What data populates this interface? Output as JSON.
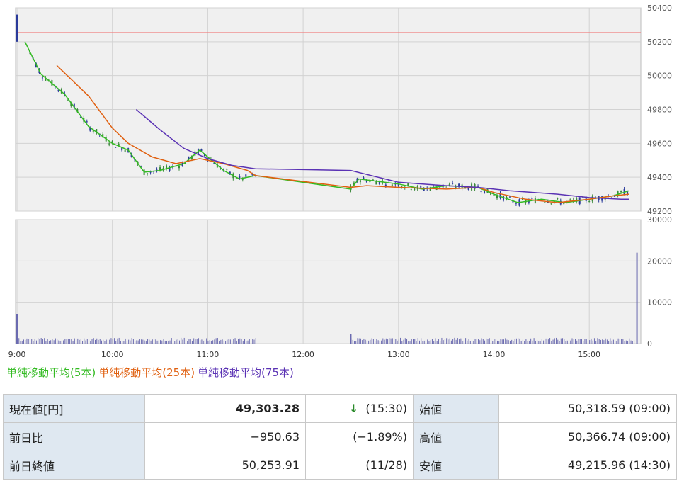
{
  "chart_data": [
    {
      "type": "candlestick",
      "x_ticks": [
        "9:00",
        "10:00",
        "11:00",
        "12:00",
        "13:00",
        "14:00",
        "15:00"
      ],
      "y_ticks": [
        "50400",
        "50200",
        "50000",
        "49800",
        "49600",
        "49400",
        "49200"
      ],
      "ylim": [
        49200,
        50400
      ],
      "grid": true,
      "reference_line": 50253.91,
      "session_breaks": [
        "11:30",
        "12:30"
      ],
      "series": [
        {
          "name": "単純移動平均(5本)",
          "color": "#33bb22",
          "points": [
            [
              "9:05",
              50200
            ],
            [
              "9:15",
              50010
            ],
            [
              "9:30",
              49890
            ],
            [
              "9:45",
              49700
            ],
            [
              "10:00",
              49600
            ],
            [
              "10:10",
              49560
            ],
            [
              "10:20",
              49430
            ],
            [
              "10:30",
              49440
            ],
            [
              "10:45",
              49480
            ],
            [
              "10:55",
              49560
            ],
            [
              "11:00",
              49520
            ],
            [
              "11:10",
              49440
            ],
            [
              "11:20",
              49390
            ],
            [
              "11:30",
              49410
            ],
            [
              "12:30",
              49330
            ],
            [
              "12:35",
              49390
            ],
            [
              "13:00",
              49360
            ],
            [
              "13:15",
              49330
            ],
            [
              "13:30",
              49350
            ],
            [
              "13:50",
              49340
            ],
            [
              "14:00",
              49300
            ],
            [
              "14:15",
              49250
            ],
            [
              "14:30",
              49270
            ],
            [
              "14:45",
              49250
            ],
            [
              "15:00",
              49270
            ],
            [
              "15:15",
              49290
            ],
            [
              "15:25",
              49320
            ]
          ]
        },
        {
          "name": "単純移動平均(25本)",
          "color": "#e06010",
          "points": [
            [
              "9:25",
              50060
            ],
            [
              "9:45",
              49880
            ],
            [
              "10:00",
              49690
            ],
            [
              "10:10",
              49600
            ],
            [
              "10:25",
              49520
            ],
            [
              "10:40",
              49480
            ],
            [
              "10:55",
              49510
            ],
            [
              "11:10",
              49480
            ],
            [
              "11:25",
              49440
            ],
            [
              "11:30",
              49410
            ],
            [
              "12:30",
              49340
            ],
            [
              "12:40",
              49350
            ],
            [
              "13:00",
              49340
            ],
            [
              "13:30",
              49330
            ],
            [
              "13:50",
              49340
            ],
            [
              "14:00",
              49310
            ],
            [
              "14:20",
              49270
            ],
            [
              "14:40",
              49250
            ],
            [
              "15:00",
              49270
            ],
            [
              "15:15",
              49290
            ],
            [
              "15:25",
              49300
            ]
          ]
        },
        {
          "name": "単純移動平均(75本)",
          "color": "#5a32b4",
          "points": [
            [
              "10:15",
              49800
            ],
            [
              "10:30",
              49680
            ],
            [
              "10:45",
              49570
            ],
            [
              "11:00",
              49510
            ],
            [
              "11:15",
              49470
            ],
            [
              "11:30",
              49450
            ],
            [
              "12:30",
              49440
            ],
            [
              "13:00",
              49370
            ],
            [
              "13:30",
              49350
            ],
            [
              "13:50",
              49340
            ],
            [
              "14:10",
              49320
            ],
            [
              "14:40",
              49300
            ],
            [
              "15:00",
              49280
            ],
            [
              "15:20",
              49270
            ],
            [
              "15:25",
              49270
            ]
          ]
        }
      ]
    },
    {
      "type": "bar",
      "x_ticks": [
        "9:00",
        "10:00",
        "11:00",
        "12:00",
        "13:00",
        "14:00",
        "15:00"
      ],
      "y_ticks": [
        "30000",
        "20000",
        "10000",
        "0"
      ],
      "ylim": [
        0,
        30000
      ],
      "grid": true,
      "spikes": [
        [
          "9:00",
          7200
        ],
        [
          "12:30",
          2300
        ],
        [
          "15:30",
          22000
        ]
      ],
      "baseline_volume": 1000
    }
  ],
  "legend": {
    "ma5": "単純移動平均(5本)",
    "ma25": "単純移動平均(25本)",
    "ma75": "単純移動平均(75本)"
  },
  "colors": {
    "ma5": "#33bb22",
    "ma25": "#e06010",
    "ma75": "#5a32b4",
    "reference": "#f08080",
    "volume": "#6a6ab0",
    "up_candle": "#3a8a3a",
    "down_candle": "#2a3a9a"
  },
  "table": {
    "current_label": "現在値[円]",
    "current_value": "49,303.28",
    "arrow": "↓",
    "current_time": "(15:30)",
    "open_label": "始値",
    "open_value": "50,318.59 (09:00)",
    "change_label": "前日比",
    "change_value": "−950.63",
    "change_pct": "(−1.89%)",
    "high_label": "高値",
    "high_value": "50,366.74 (09:00)",
    "prev_label": "前日終値",
    "prev_value": "50,253.91",
    "prev_date": "(11/28)",
    "low_label": "安値",
    "low_value": "49,215.96 (14:30)"
  }
}
